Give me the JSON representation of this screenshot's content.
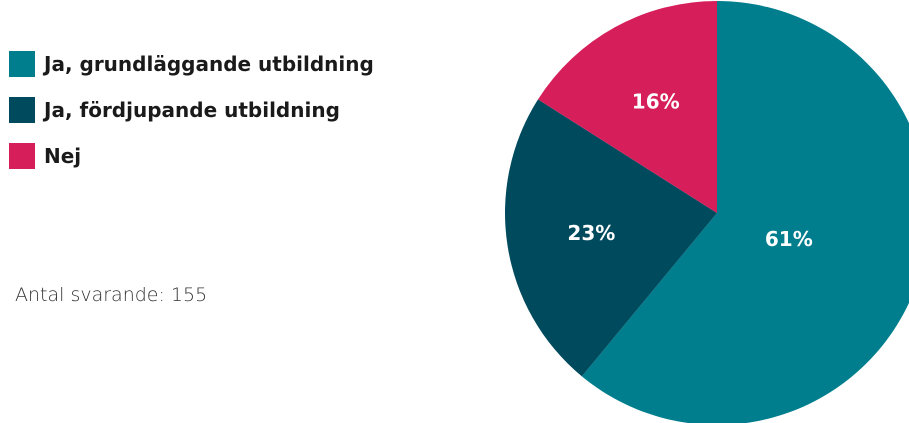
{
  "chart_data": {
    "type": "pie",
    "categories": [
      "Ja, grundläggande utbildning",
      "Ja, fördjupande utbildning",
      "Nej"
    ],
    "values": [
      61,
      23,
      16
    ],
    "value_labels": [
      "61%",
      "23%",
      "16%"
    ],
    "colors": [
      "#007e8d",
      "#004a5e",
      "#d61e5b"
    ],
    "start_angle_deg": 0,
    "direction": "clockwise",
    "legend_placement": "top-left",
    "title": "",
    "note": "Antal svarande: 155"
  }
}
